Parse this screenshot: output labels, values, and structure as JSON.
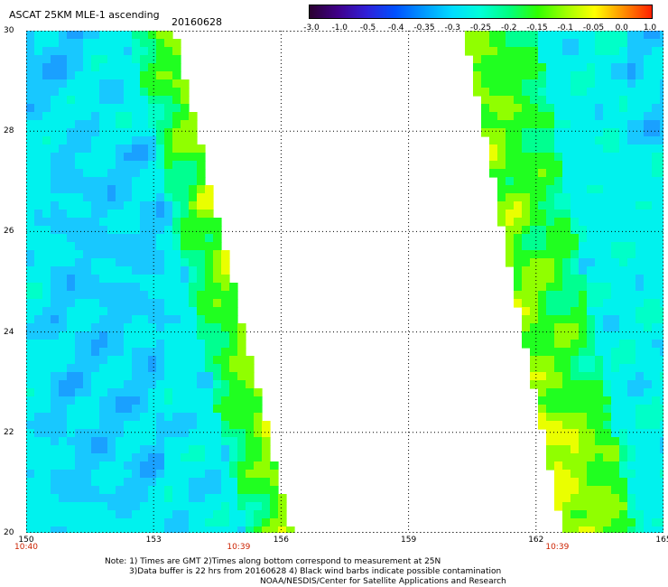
{
  "header": {
    "title": "ASCAT 25KM MLE-1 ascending",
    "date": "20160628"
  },
  "colorbar": {
    "labels": [
      "-3.0",
      "-1.0",
      "-0.5",
      "-0.4",
      "-0.35",
      "-0.3",
      "-0.25",
      "-0.2",
      "-0.15",
      "-0.1",
      "-0.05",
      "0.0",
      "1.0"
    ],
    "colors": [
      "#2a0030",
      "#40008a",
      "#3020d8",
      "#0050ff",
      "#0098ff",
      "#00dcff",
      "#00ffd8",
      "#00ff80",
      "#30ff00",
      "#a0ff00",
      "#ffff00",
      "#ff9000",
      "#ff2000"
    ]
  },
  "axes": {
    "y_ticks": [
      "30",
      "28",
      "26",
      "24",
      "22",
      "20"
    ],
    "x_ticks": [
      "150",
      "153",
      "156",
      "159",
      "162",
      "165"
    ],
    "times": [
      {
        "label": "10:40",
        "lon": 150
      },
      {
        "label": "10:39",
        "lon": 155
      },
      {
        "label": "10:39",
        "lon": 162.5
      }
    ]
  },
  "map": {
    "lon_range": [
      150,
      165
    ],
    "lat_range": [
      20,
      30
    ],
    "palette": {
      "deep": "#0a50ff",
      "blue": "#1aa0ff",
      "light": "#18c8ff",
      "cyan": "#00f2ee",
      "aqua": "#00ffc8",
      "mint": "#00ff90",
      "green": "#20ff20",
      "lime": "#90ff00",
      "yellow": "#eaff00"
    }
  },
  "footer": {
    "line1": "Note: 1) Times are GMT 2)Times along bottom correspond to measurement at 25N",
    "line2": "3)Data buffer is 22 hrs from 20160628 4) Black wind barbs indicate possible contamination",
    "line3": "NOAA/NESDIS/Center for Satellite Applications and Research"
  }
}
